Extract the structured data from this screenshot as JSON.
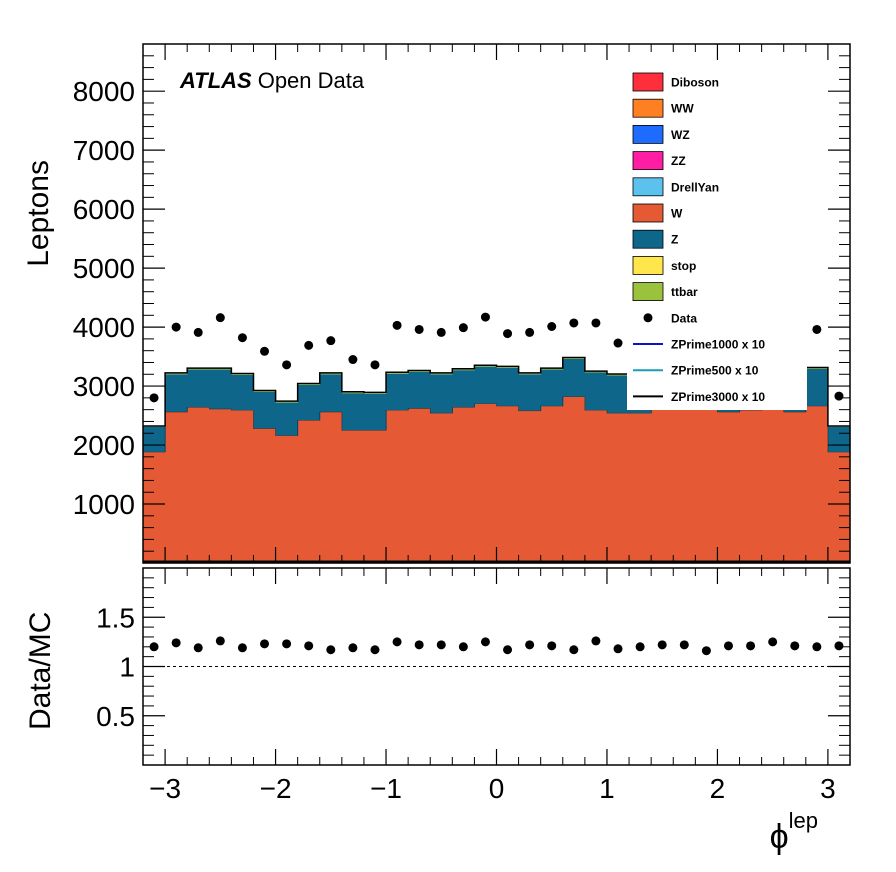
{
  "chart_data": [
    {
      "type": "bar",
      "subtype": "stacked-histogram",
      "annotation_bold": "ATLAS",
      "annotation_rest": "Open Data",
      "ylabel": "Leptons",
      "xlabel": "ϕ",
      "xlabel_sup": "lep",
      "xlim": [
        -3.2,
        3.2
      ],
      "ylim": [
        0,
        8800
      ],
      "x_ticks": [
        -3,
        -2,
        -1,
        0,
        1,
        2,
        3
      ],
      "x_tick_labels": [
        "−3",
        "−2",
        "−1",
        "0",
        "1",
        "2",
        "3"
      ],
      "y_ticks": [
        1000,
        2000,
        3000,
        4000,
        5000,
        6000,
        7000,
        8000
      ],
      "y_tick_labels": [
        "1000",
        "2000",
        "3000",
        "4000",
        "5000",
        "6000",
        "7000",
        "8000"
      ],
      "legend_position": "top-right",
      "bin_edges": [
        -3.2,
        -3.0,
        -2.8,
        -2.6,
        -2.4,
        -2.2,
        -2.0,
        -1.8,
        -1.6,
        -1.4,
        -1.2,
        -1.0,
        -0.8,
        -0.6,
        -0.4,
        -0.2,
        0.0,
        0.2,
        0.4,
        0.6,
        0.8,
        1.0,
        1.2,
        1.4,
        1.6,
        1.8,
        2.0,
        2.2,
        2.4,
        2.6,
        2.8,
        3.0,
        3.2
      ],
      "series": [
        {
          "name": "W",
          "color": "#e55a34",
          "values": [
            1880,
            2560,
            2640,
            2610,
            2590,
            2280,
            2160,
            2420,
            2560,
            2250,
            2250,
            2590,
            2620,
            2540,
            2640,
            2700,
            2660,
            2580,
            2660,
            2820,
            2590,
            2540,
            2540,
            2640,
            2610,
            2600,
            2560,
            2590,
            2630,
            2560,
            2660,
            1880
          ]
        },
        {
          "name": "Z",
          "color": "#0e668b",
          "values": [
            430,
            640,
            640,
            670,
            600,
            620,
            560,
            600,
            640,
            630,
            620,
            620,
            620,
            660,
            630,
            630,
            650,
            620,
            620,
            640,
            640,
            640,
            650,
            640,
            640,
            640,
            650,
            630,
            650,
            600,
            630,
            430
          ]
        },
        {
          "name": "ttbar",
          "color": "#9bc23d",
          "values": [
            10,
            20,
            20,
            20,
            20,
            20,
            20,
            20,
            20,
            20,
            20,
            20,
            20,
            20,
            20,
            20,
            20,
            20,
            20,
            20,
            20,
            20,
            20,
            20,
            20,
            20,
            20,
            20,
            20,
            20,
            20,
            10
          ]
        },
        {
          "name": "stop",
          "color": "#ffe64a",
          "values": [
            2,
            4,
            4,
            4,
            4,
            4,
            4,
            4,
            4,
            4,
            4,
            4,
            4,
            4,
            4,
            4,
            4,
            4,
            4,
            4,
            4,
            4,
            4,
            4,
            4,
            4,
            4,
            4,
            4,
            4,
            4,
            2
          ]
        },
        {
          "name": "DrellYan",
          "color": "#5bc2ee",
          "values": [
            0,
            0,
            0,
            0,
            0,
            0,
            0,
            0,
            0,
            0,
            0,
            0,
            0,
            0,
            0,
            0,
            0,
            0,
            0,
            0,
            0,
            0,
            0,
            0,
            0,
            0,
            0,
            0,
            0,
            0,
            0,
            0
          ]
        },
        {
          "name": "ZZ",
          "color": "#ff1ea3",
          "values": [
            0,
            0,
            0,
            0,
            0,
            0,
            0,
            0,
            0,
            0,
            0,
            0,
            0,
            0,
            0,
            0,
            0,
            0,
            0,
            0,
            0,
            0,
            0,
            0,
            0,
            0,
            0,
            0,
            0,
            0,
            0,
            0
          ]
        },
        {
          "name": "WZ",
          "color": "#1d6cff",
          "values": [
            0,
            0,
            0,
            0,
            0,
            0,
            0,
            0,
            0,
            0,
            0,
            0,
            0,
            0,
            0,
            0,
            0,
            0,
            0,
            0,
            0,
            0,
            0,
            0,
            0,
            0,
            0,
            0,
            0,
            0,
            0,
            0
          ]
        },
        {
          "name": "WW",
          "color": "#ff8022",
          "values": [
            0,
            0,
            0,
            0,
            0,
            0,
            0,
            0,
            0,
            0,
            0,
            0,
            0,
            0,
            0,
            0,
            0,
            0,
            0,
            0,
            0,
            0,
            0,
            0,
            0,
            0,
            0,
            0,
            0,
            0,
            0,
            0
          ]
        },
        {
          "name": "Diboson",
          "color": "#ff2e3b",
          "values": [
            0,
            0,
            0,
            0,
            0,
            0,
            0,
            0,
            0,
            0,
            0,
            0,
            0,
            0,
            0,
            0,
            0,
            0,
            0,
            0,
            0,
            0,
            0,
            0,
            0,
            0,
            0,
            0,
            0,
            0,
            0,
            0
          ]
        }
      ],
      "data": {
        "name": "Data",
        "color": "#000000",
        "values": [
          2800,
          4000,
          3910,
          4160,
          3820,
          3590,
          3360,
          3690,
          3770,
          3450,
          3360,
          4030,
          3960,
          3910,
          3990,
          4170,
          3890,
          3910,
          4010,
          4070,
          4070,
          3730,
          3720,
          3760,
          3850,
          3900,
          3910,
          3900,
          3910,
          3880,
          3960,
          2830
        ]
      },
      "legend": [
        {
          "label": "Diboson",
          "kind": "box",
          "color": "#ff2e3b"
        },
        {
          "label": "WW",
          "kind": "box",
          "color": "#ff8022"
        },
        {
          "label": "WZ",
          "kind": "box",
          "color": "#1d6cff"
        },
        {
          "label": "ZZ",
          "kind": "box",
          "color": "#ff1ea3"
        },
        {
          "label": "DrellYan",
          "kind": "box",
          "color": "#5bc2ee"
        },
        {
          "label": "W",
          "kind": "box",
          "color": "#e55a34"
        },
        {
          "label": "Z",
          "kind": "box",
          "color": "#0e668b"
        },
        {
          "label": "stop",
          "kind": "box",
          "color": "#ffe64a"
        },
        {
          "label": "ttbar",
          "kind": "box",
          "color": "#9bc23d"
        },
        {
          "label": "Data",
          "kind": "marker",
          "color": "#000000"
        },
        {
          "label": "ZPrime1000 x 10",
          "kind": "line",
          "color": "#0b12c8"
        },
        {
          "label": "ZPrime500 x 10",
          "kind": "line",
          "color": "#1a9bb8"
        },
        {
          "label": "ZPrime3000 x 10",
          "kind": "line",
          "color": "#000000"
        }
      ]
    },
    {
      "type": "scatter",
      "subtype": "ratio",
      "ylabel": "Data/MC",
      "xlim": [
        -3.2,
        3.2
      ],
      "ylim": [
        0,
        2
      ],
      "y_ticks": [
        0.5,
        1,
        1.5
      ],
      "y_tick_labels": [
        "0.5",
        "1",
        "1.5"
      ],
      "reference_line": 1,
      "x": [
        -3.1,
        -2.9,
        -2.7,
        -2.5,
        -2.3,
        -2.1,
        -1.9,
        -1.7,
        -1.5,
        -1.3,
        -1.1,
        -0.9,
        -0.7,
        -0.5,
        -0.3,
        -0.1,
        0.1,
        0.3,
        0.5,
        0.7,
        0.9,
        1.1,
        1.3,
        1.5,
        1.7,
        1.9,
        2.1,
        2.3,
        2.5,
        2.7,
        2.9,
        3.1
      ],
      "values": [
        1.2,
        1.24,
        1.19,
        1.26,
        1.19,
        1.23,
        1.23,
        1.21,
        1.17,
        1.19,
        1.17,
        1.25,
        1.22,
        1.22,
        1.2,
        1.25,
        1.17,
        1.22,
        1.21,
        1.17,
        1.26,
        1.18,
        1.2,
        1.22,
        1.22,
        1.16,
        1.21,
        1.21,
        1.25,
        1.21,
        1.2,
        1.21
      ]
    }
  ]
}
